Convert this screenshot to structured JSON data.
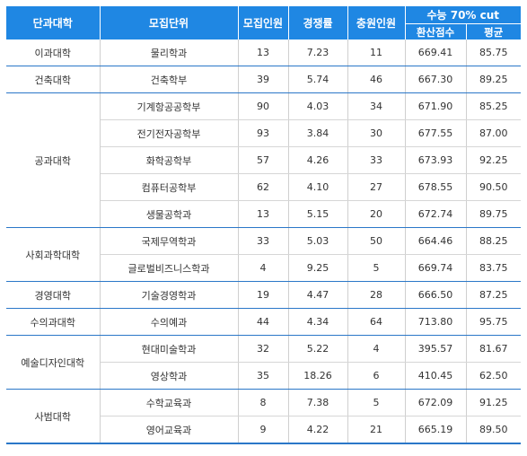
{
  "table": {
    "headers": {
      "college": "단과대학",
      "department": "모집단위",
      "quota": "모집인원",
      "competition": "경쟁률",
      "filled": "충원인원",
      "cut_group": "수능 70% cut",
      "converted": "환산점수",
      "average": "평균"
    },
    "groups": [
      {
        "college": "이과대학",
        "rows": [
          {
            "department": "물리학과",
            "quota": "13",
            "competition": "7.23",
            "filled": "11",
            "converted": "669.41",
            "average": "85.75"
          }
        ]
      },
      {
        "college": "건축대학",
        "rows": [
          {
            "department": "건축학부",
            "quota": "39",
            "competition": "5.74",
            "filled": "46",
            "converted": "667.30",
            "average": "89.25"
          }
        ]
      },
      {
        "college": "공과대학",
        "rows": [
          {
            "department": "기계항공공학부",
            "quota": "90",
            "competition": "4.03",
            "filled": "34",
            "converted": "671.90",
            "average": "85.25"
          },
          {
            "department": "전기전자공학부",
            "quota": "93",
            "competition": "3.84",
            "filled": "30",
            "converted": "677.55",
            "average": "87.00"
          },
          {
            "department": "화학공학부",
            "quota": "57",
            "competition": "4.26",
            "filled": "33",
            "converted": "673.93",
            "average": "92.25"
          },
          {
            "department": "컴퓨터공학부",
            "quota": "62",
            "competition": "4.10",
            "filled": "27",
            "converted": "678.55",
            "average": "90.50"
          },
          {
            "department": "생물공학과",
            "quota": "13",
            "competition": "5.15",
            "filled": "20",
            "converted": "672.74",
            "average": "89.75"
          }
        ]
      },
      {
        "college": "사회과학대학",
        "rows": [
          {
            "department": "국제무역학과",
            "quota": "33",
            "competition": "5.03",
            "filled": "50",
            "converted": "664.46",
            "average": "88.25"
          },
          {
            "department": "글로벌비즈니스학과",
            "quota": "4",
            "competition": "9.25",
            "filled": "5",
            "converted": "669.74",
            "average": "83.75"
          }
        ]
      },
      {
        "college": "경영대학",
        "rows": [
          {
            "department": "기술경영학과",
            "quota": "19",
            "competition": "4.47",
            "filled": "28",
            "converted": "666.50",
            "average": "87.25"
          }
        ]
      },
      {
        "college": "수의과대학",
        "rows": [
          {
            "department": "수의예과",
            "quota": "44",
            "competition": "4.34",
            "filled": "64",
            "converted": "713.80",
            "average": "95.75"
          }
        ]
      },
      {
        "college": "예술디자인대학",
        "rows": [
          {
            "department": "현대미술학과",
            "quota": "32",
            "competition": "5.22",
            "filled": "4",
            "converted": "395.57",
            "average": "81.67"
          },
          {
            "department": "영상학과",
            "quota": "35",
            "competition": "18.26",
            "filled": "6",
            "converted": "410.45",
            "average": "62.50"
          }
        ]
      },
      {
        "college": "사범대학",
        "rows": [
          {
            "department": "수학교육과",
            "quota": "8",
            "competition": "7.38",
            "filled": "5",
            "converted": "672.09",
            "average": "91.25"
          },
          {
            "department": "영어교육과",
            "quota": "9",
            "competition": "4.22",
            "filled": "21",
            "converted": "665.19",
            "average": "89.50"
          }
        ]
      }
    ]
  },
  "colors": {
    "header_bg": "#1f87e3",
    "group_rule": "#2a77c8",
    "text": "#333333"
  }
}
